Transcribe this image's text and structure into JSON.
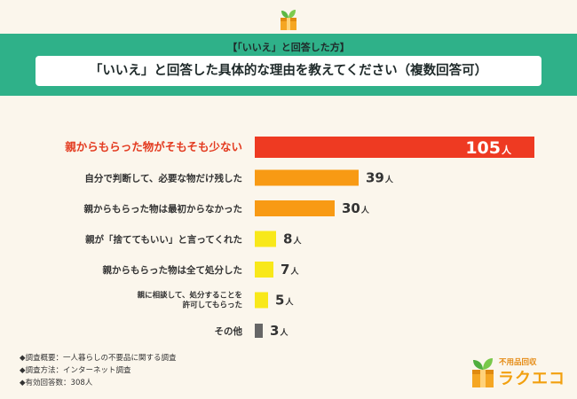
{
  "header": {
    "subtitle": "【「いいえ」と回答した方】",
    "title": "「いいえ」と回答した具体的な理由を教えてください（複数回答可）"
  },
  "chart_data": {
    "type": "bar",
    "orientation": "horizontal",
    "categories": [
      [
        "親からもらった物がそもそも少ない"
      ],
      [
        "自分で判断して、必要な物だけ残した"
      ],
      [
        "親からもらった物は最初からなかった"
      ],
      [
        "親が「捨ててもいい」と言ってくれた"
      ],
      [
        "親からもらった物は全て処分した"
      ],
      [
        "親に相談して、処分することを",
        "許可してもらった"
      ],
      [
        "その他"
      ]
    ],
    "values": [
      105,
      39,
      30,
      8,
      7,
      5,
      3
    ],
    "unit": "人",
    "bar_colors": [
      "#ee3a22",
      "#f89a14",
      "#f89a14",
      "#f8e81a",
      "#f8e81a",
      "#f8e81a",
      "#666666"
    ],
    "highlight_index": 0
  },
  "notes": [
    "◆調査概要：一人暮らしの不要品に関する調査",
    "◆調査方法：インターネット調査",
    "◆有効回答数：308人"
  ],
  "brand": {
    "tagline": "不用品回収",
    "name": "ラクエコ"
  }
}
